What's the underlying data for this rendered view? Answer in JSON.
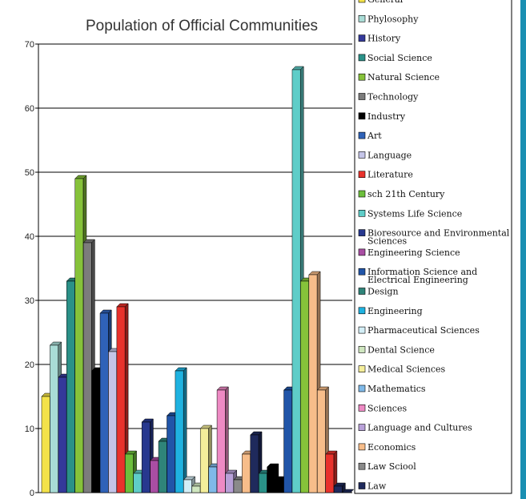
{
  "chart_data": {
    "type": "bar",
    "title": "Population of Official Communities",
    "ylim": [
      0,
      70
    ],
    "y_ticks": [
      0,
      10,
      20,
      30,
      40,
      50,
      60,
      70
    ],
    "grid": true,
    "legend_position": "right",
    "bars": [
      {
        "series": "General",
        "value": 15
      },
      {
        "series": "Phylosophy",
        "value": 23
      },
      {
        "series": "History",
        "value": 18
      },
      {
        "series": "Social Science",
        "value": 33
      },
      {
        "series": "Natural Science",
        "value": 49
      },
      {
        "series": "Technology",
        "value": 39
      },
      {
        "series": "Industry",
        "value": 19
      },
      {
        "series": "Art",
        "value": 28
      },
      {
        "series": "Language",
        "value": 22
      },
      {
        "series": "Literature",
        "value": 29
      },
      {
        "series": "sch 21th Century",
        "value": 6
      },
      {
        "series": "Systems Life Science",
        "value": 3
      },
      {
        "series": "Bioresource and Environmental Sciences",
        "value": 11
      },
      {
        "series": "Engineering Science",
        "value": 5
      },
      {
        "series": "Design",
        "value": 8
      },
      {
        "series": "Information Science and Electrical Engineering",
        "value": 12
      },
      {
        "series": "Engineering",
        "value": 19
      },
      {
        "series": "Pharmaceutical Sciences",
        "value": 2
      },
      {
        "series": "Dental Science",
        "value": 1
      },
      {
        "series": "Medical Sciences",
        "value": 10
      },
      {
        "series": "Mathematics",
        "value": 4
      },
      {
        "series": "Sciences",
        "value": 16
      },
      {
        "series": "Language and Cultures",
        "value": 3
      },
      {
        "series": "Law Sciool",
        "value": 2
      },
      {
        "series": "Economics",
        "value": 6
      },
      {
        "series": "Law",
        "value": 9
      },
      {
        "series": "Social Science",
        "value": 3
      },
      {
        "series": "Industry",
        "value": 4
      },
      {
        "series": "Industry",
        "value": 2
      },
      {
        "series": "Information Science and Electrical Engineering",
        "value": 16
      },
      {
        "series": "Systems Life Science",
        "value": 66
      },
      {
        "series": "Natural Science",
        "value": 33
      },
      {
        "series": "Economics",
        "value": 34
      },
      {
        "series": "Economics",
        "value": 16
      },
      {
        "series": "Literature",
        "value": 6
      },
      {
        "series": "Law",
        "value": 1
      },
      {
        "series": "Law",
        "value": 0
      }
    ],
    "legend": [
      {
        "name": "General",
        "color": "#f3e24a"
      },
      {
        "name": "Phylosophy",
        "color": "#a9dcd6"
      },
      {
        "name": "History",
        "color": "#34399a"
      },
      {
        "name": "Social Science",
        "color": "#2a9188"
      },
      {
        "name": "Natural Science",
        "color": "#86c23a"
      },
      {
        "name": "Technology",
        "color": "#7c7c7c"
      },
      {
        "name": "Industry",
        "color": "#000000"
      },
      {
        "name": "Art",
        "color": "#2f62b8"
      },
      {
        "name": "Language",
        "color": "#c4c4e8"
      },
      {
        "name": "Literature",
        "color": "#e8322c"
      },
      {
        "name": "sch 21th Century",
        "color": "#6cbf3c"
      },
      {
        "name": "Systems Life Science",
        "color": "#5fcdc8"
      },
      {
        "name": "Bioresource and Environmental Sciences",
        "color": "#27388f"
      },
      {
        "name": "Engineering Science",
        "color": "#a94ea3"
      },
      {
        "name": "Information Science and Electrical Engineering",
        "color": "#2155a8"
      },
      {
        "name": "Design",
        "color": "#2f8479"
      },
      {
        "name": "Engineering",
        "color": "#1fb2e0"
      },
      {
        "name": "Pharmaceutical Sciences",
        "color": "#d3eef6"
      },
      {
        "name": "Dental Science",
        "color": "#cfe6bf"
      },
      {
        "name": "Medical Sciences",
        "color": "#f4ee9a"
      },
      {
        "name": "Mathematics",
        "color": "#7fb9e8"
      },
      {
        "name": "Sciences",
        "color": "#ee8ac4"
      },
      {
        "name": "Language and Cultures",
        "color": "#b8a0d8"
      },
      {
        "name": "Economics",
        "color": "#f7bd8a"
      },
      {
        "name": "Law Sciool",
        "color": "#8a8a8a"
      },
      {
        "name": "Law",
        "color": "#1f2a5c"
      }
    ]
  },
  "colors": {
    "frame_accent": "#1a8fb2",
    "gridline": "#000000"
  }
}
